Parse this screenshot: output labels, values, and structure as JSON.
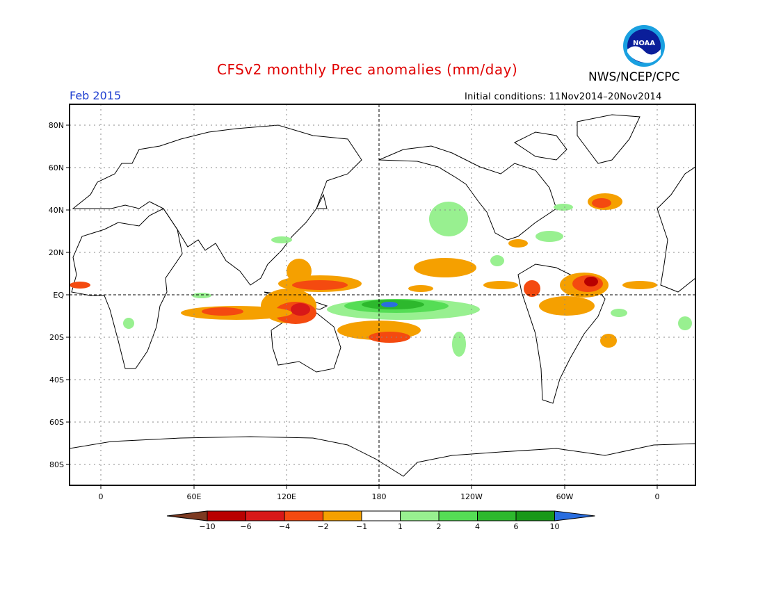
{
  "header": {
    "title": "CFSv2 monthly Prec anomalies (mm/day)",
    "agency": "NWS/NCEP/CPC",
    "valid_month": "Feb 2015",
    "initial_conditions": "Initial conditions: 11Nov2014–20Nov2014",
    "logo_text": "NOAA"
  },
  "map": {
    "lat_labels": [
      "80N",
      "60N",
      "40N",
      "20N",
      "EQ",
      "20S",
      "40S",
      "60S",
      "80S"
    ],
    "lon_labels": [
      "0",
      "60E",
      "120E",
      "180",
      "120W",
      "60W",
      "0"
    ],
    "grid": true
  },
  "legend": {
    "labels": [
      "−10",
      "−6",
      "−4",
      "−2",
      "−1",
      "1",
      "2",
      "4",
      "6",
      "10"
    ],
    "colors": [
      "#7d3a21",
      "#b80000",
      "#d81818",
      "#f44a10",
      "#f5a000",
      "#ffffff",
      "#98f090",
      "#55dd55",
      "#2db82d",
      "#189818",
      "#2a6ee0"
    ]
  }
}
